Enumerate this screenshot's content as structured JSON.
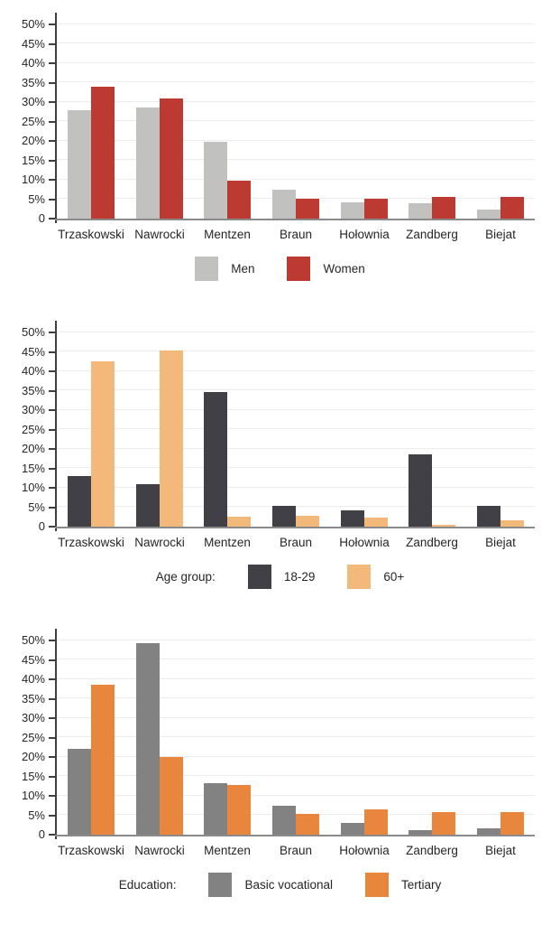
{
  "page": {
    "background": "#ffffff"
  },
  "colors": {
    "axis": "#3f3f3f",
    "baseline": "#8a8a8a",
    "gridline": "#ececec",
    "text": "#262626"
  },
  "axis_defaults": {
    "ymax": 50,
    "ytick_step": 5,
    "ytick_labels": [
      "50%",
      "45%",
      "40%",
      "35%",
      "30%",
      "25%",
      "20%",
      "15%",
      "10%",
      "5%",
      "0"
    ]
  },
  "chart_data": [
    {
      "type": "bar",
      "id": "support-by-gender",
      "title": "",
      "categories": [
        "Trzaskowski",
        "Nawrocki",
        "Mentzen",
        "Braun",
        "Hołownia",
        "Zandberg",
        "Biejat"
      ],
      "series": [
        {
          "name": "Men",
          "color": "#c1c1c0",
          "values": [
            28.0,
            28.6,
            19.7,
            7.4,
            4.3,
            3.9,
            2.4
          ]
        },
        {
          "name": "Women",
          "color": "#bd3a33",
          "values": [
            34.0,
            31.0,
            9.8,
            5.0,
            5.2,
            5.5,
            5.5
          ]
        }
      ],
      "legend_prefix": "",
      "xlabel": "",
      "ylabel": "",
      "ylim": [
        0,
        50
      ],
      "ytick_labels": [
        "50%",
        "45%",
        "40%",
        "35%",
        "30%",
        "25%",
        "20%",
        "15%",
        "10%",
        "5%",
        "0"
      ],
      "grid": true,
      "legend_position": "bottom"
    },
    {
      "type": "bar",
      "id": "support-by-age-group",
      "title": "",
      "categories": [
        "Trzaskowski",
        "Nawrocki",
        "Mentzen",
        "Braun",
        "Hołownia",
        "Zandberg",
        "Biejat"
      ],
      "series": [
        {
          "name": "18-29",
          "color": "#404046",
          "values": [
            13.0,
            11.0,
            34.7,
            5.3,
            4.3,
            18.7,
            5.3
          ]
        },
        {
          "name": "60+",
          "color": "#f2b97b",
          "values": [
            42.5,
            45.3,
            2.6,
            2.9,
            2.3,
            0.5,
            1.6
          ]
        }
      ],
      "legend_prefix": "Age group:",
      "xlabel": "",
      "ylabel": "",
      "ylim": [
        0,
        50
      ],
      "ytick_labels": [
        "50%",
        "45%",
        "40%",
        "35%",
        "30%",
        "25%",
        "20%",
        "15%",
        "10%",
        "5%",
        "0"
      ],
      "grid": true,
      "legend_position": "bottom"
    },
    {
      "type": "bar",
      "id": "support-by-education",
      "title": "",
      "categories": [
        "Trzaskowski",
        "Nawrocki",
        "Mentzen",
        "Braun",
        "Hołownia",
        "Zandberg",
        "Biejat"
      ],
      "series": [
        {
          "name": "Basic vocational",
          "color": "#828282",
          "values": [
            22.0,
            49.3,
            13.2,
            7.4,
            3.0,
            1.1,
            1.6
          ]
        },
        {
          "name": "Tertiary",
          "color": "#e8863d",
          "values": [
            38.6,
            19.9,
            12.8,
            5.4,
            6.6,
            5.7,
            5.8
          ]
        }
      ],
      "legend_prefix": "Education:",
      "xlabel": "",
      "ylabel": "",
      "ylim": [
        0,
        50
      ],
      "ytick_labels": [
        "50%",
        "45%",
        "40%",
        "35%",
        "30%",
        "25%",
        "20%",
        "15%",
        "10%",
        "5%",
        "0"
      ],
      "grid": true,
      "legend_position": "bottom"
    }
  ]
}
